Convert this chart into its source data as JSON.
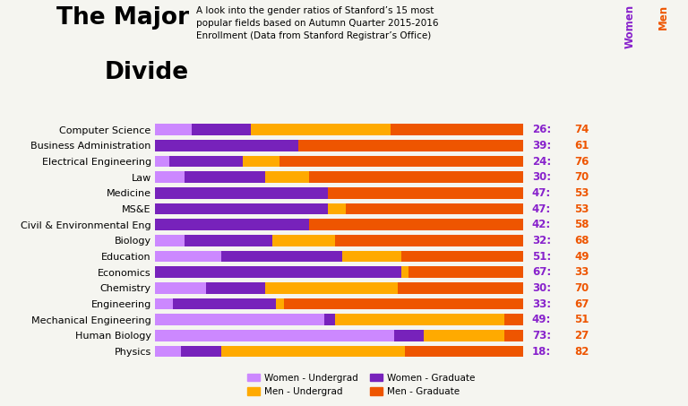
{
  "majors": [
    "Computer Science",
    "Business Administration",
    "Electrical Engineering",
    "Law",
    "Medicine",
    "MS&E",
    "Civil & Environmental Eng",
    "Biology",
    "Education",
    "Economics",
    "Chemistry",
    "Engineering",
    "Mechanical Engineering",
    "Human Biology",
    "Physics"
  ],
  "women_total": [
    26,
    39,
    24,
    30,
    47,
    47,
    42,
    32,
    51,
    67,
    30,
    33,
    49,
    73,
    18
  ],
  "men_total": [
    74,
    61,
    76,
    70,
    53,
    53,
    58,
    68,
    49,
    33,
    70,
    67,
    51,
    27,
    82
  ],
  "women_undergrad": [
    10,
    0,
    4,
    8,
    0,
    0,
    0,
    8,
    18,
    0,
    14,
    5,
    46,
    65,
    7
  ],
  "women_graduate": [
    16,
    39,
    20,
    22,
    47,
    47,
    42,
    24,
    33,
    67,
    16,
    28,
    3,
    8,
    11
  ],
  "men_undergrad": [
    38,
    0,
    10,
    12,
    0,
    5,
    0,
    17,
    16,
    2,
    36,
    2,
    46,
    22,
    50
  ],
  "men_graduate": [
    36,
    61,
    66,
    58,
    53,
    48,
    58,
    51,
    33,
    31,
    34,
    65,
    5,
    5,
    32
  ],
  "color_women_undergrad": "#cc88ff",
  "color_women_graduate": "#7722bb",
  "color_men_undergrad": "#ffaa00",
  "color_men_graduate": "#ee5500",
  "color_women_label": "#8822cc",
  "color_men_label": "#ee5500",
  "bg_color": "#f5f5f0",
  "title_line1": "The Major",
  "title_line2": "Divide",
  "subtitle": "A look into the gender ratios of Stanford’s 15 most\npopular fields based on Autumn Quarter 2015-2016\nEnrollment (Data from Stanford Registrar’s Office)"
}
